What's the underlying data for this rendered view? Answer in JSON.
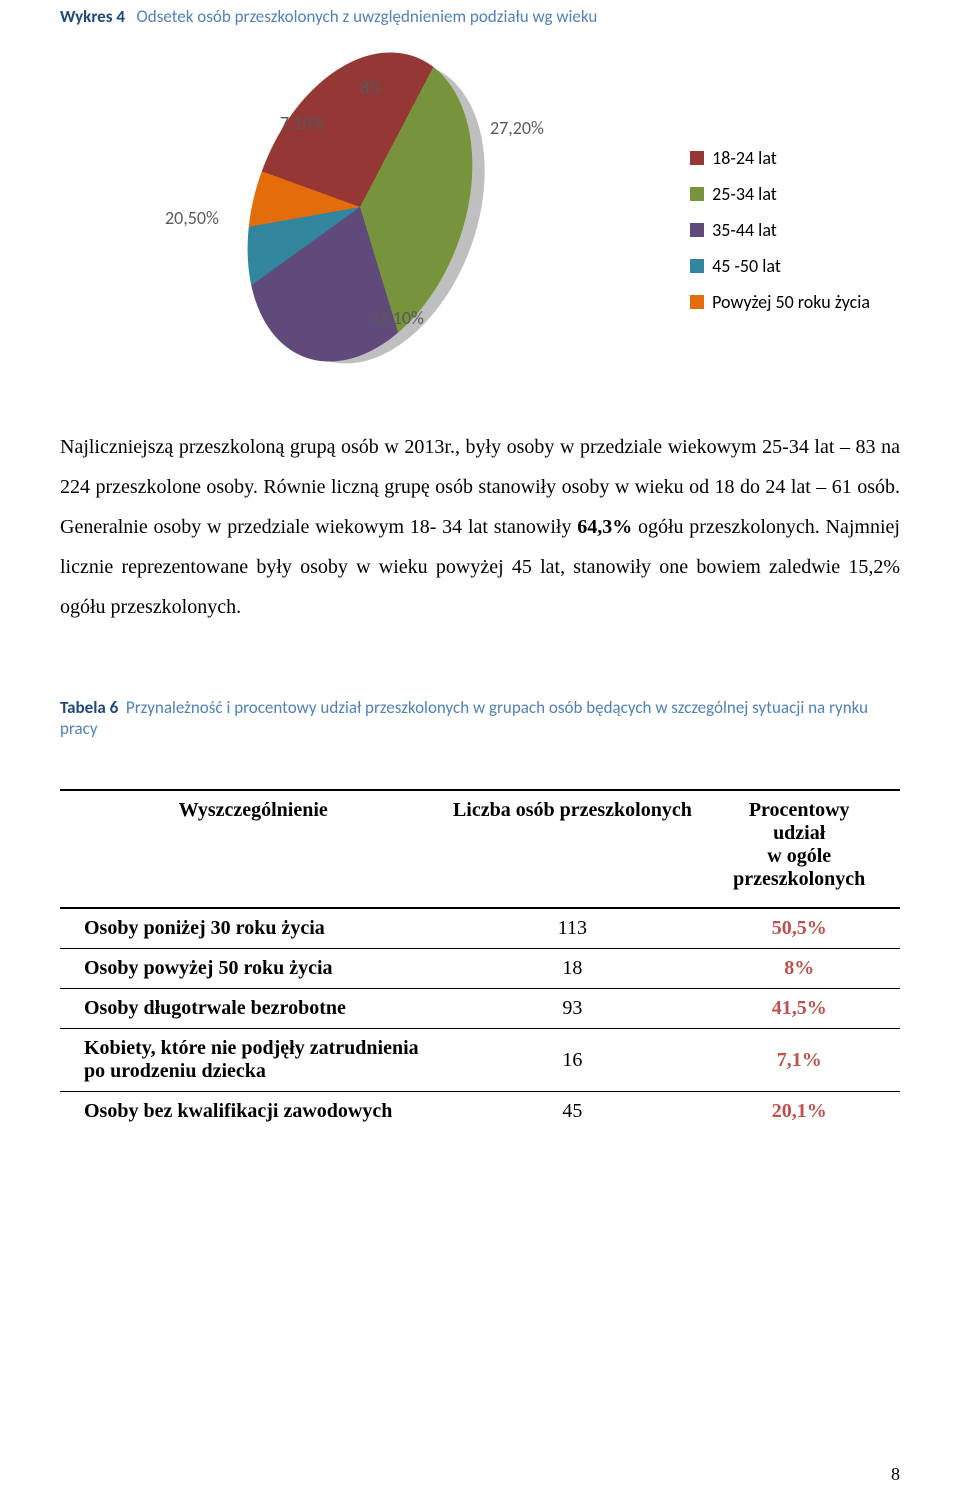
{
  "chart_caption": {
    "label": "Wykres 4",
    "title": "Odsetek osób przeszkolonych z uwzględnieniem podziału  wg wieku"
  },
  "pie_chart": {
    "type": "pie",
    "background_color": "#ffffff",
    "label_color": "#595959",
    "label_fontsize": 18,
    "slices": [
      {
        "label": "18-24 lat",
        "value": 27.2,
        "display": "27,20%",
        "color": "#953735"
      },
      {
        "label": "25-34 lat",
        "value": 37.1,
        "display": "37,10%",
        "color": "#77933c"
      },
      {
        "label": "35-44 lat",
        "value": 20.5,
        "display": "20,50%",
        "color": "#604a7b"
      },
      {
        "label": "45 -50 lat",
        "value": 7.1,
        "display": "7,10%",
        "color": "#31859c"
      },
      {
        "label": "Powyżej 50 roku życia",
        "value": 8.0,
        "display": "8%",
        "color": "#e46c0a"
      }
    ],
    "legend_fontsize": 18,
    "legend_text_color": "#000000"
  },
  "paragraph": {
    "p1": "Najliczniejszą  przeszkoloną grupą osób w 2013r., były osoby w przedziale wiekowym 25-34 lat – 83  na 224 przeszkolone osoby. Równie liczną grupę osób stanowiły  osoby  w wieku od 18 do 24 lat – 61 osób. Generalnie osoby w przedziale wiekowym 18- 34 lat stanowiły ",
    "p1_bold": "64,3%",
    "p2": " ogółu przeszkolonych. Najmniej licznie reprezentowane były osoby w wieku powyżej 45 lat, stanowiły one bowiem zaledwie 15,2%  ogółu przeszkolonych."
  },
  "table_caption": {
    "label": "Tabela 6",
    "title": "Przynależność i procentowy udział  przeszkolonych w grupach osób będących w szczególnej  sytuacji na rynku pracy"
  },
  "table": {
    "columns": [
      "Wyszczególnienie",
      "Liczba osób przeszkolonych",
      "Procentowy udział w ogóle przeszkolonych"
    ],
    "col2_multiline": [
      "Procentowy",
      "udział",
      "w ogóle",
      "przeszkolonych"
    ],
    "rows": [
      {
        "label": "Osoby poniżej 30 roku życia",
        "count": "113",
        "pct": "50,5%"
      },
      {
        "label": "Osoby powyżej 50 roku życia",
        "count": "18",
        "pct": "8%"
      },
      {
        "label": "Osoby długotrwale bezrobotne",
        "count": "93",
        "pct": "41,5%"
      },
      {
        "label": "Kobiety, które nie podjęły zatrudnienia po urodzeniu dziecka",
        "count": "16",
        "pct": "7,1%"
      },
      {
        "label": "Osoby bez kwalifikacji zawodowych",
        "count": "45",
        "pct": "20,1%"
      }
    ],
    "pct_color": "#c0504d",
    "border_color": "#000000"
  },
  "page_number": "8"
}
